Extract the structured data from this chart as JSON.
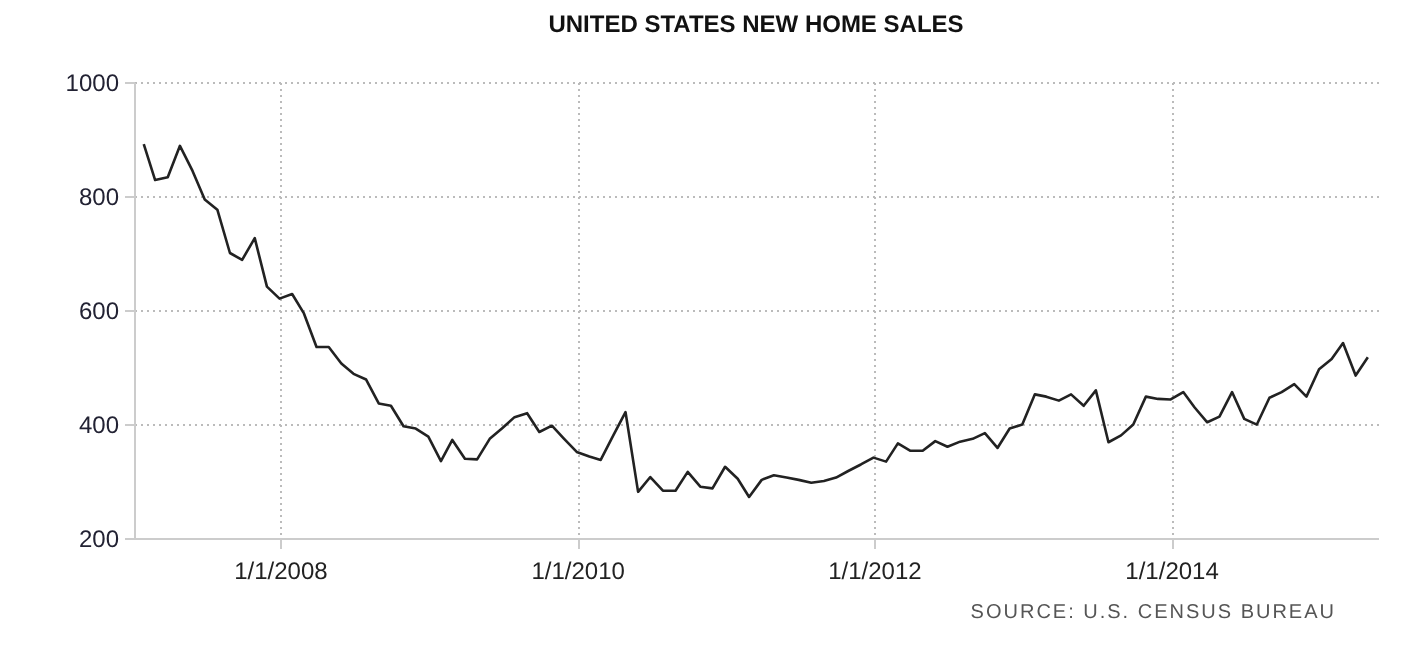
{
  "chart_data": {
    "type": "line",
    "title": "UNITED STATES NEW HOME SALES",
    "annotations": [
      "SOURCE: U.S. CENSUS BUREAU"
    ],
    "x": [
      "2007-01-31",
      "2007-02-28",
      "2007-03-31",
      "2007-04-30",
      "2007-05-31",
      "2007-06-30",
      "2007-07-31",
      "2007-08-31",
      "2007-09-30",
      "2007-10-31",
      "2007-11-30",
      "2007-12-31",
      "2008-01-31",
      "2008-02-29",
      "2008-03-31",
      "2008-04-30",
      "2008-05-31",
      "2008-06-30",
      "2008-07-31",
      "2008-08-31",
      "2008-09-30",
      "2008-10-31",
      "2008-11-30",
      "2008-12-31",
      "2009-01-31",
      "2009-02-28",
      "2009-03-31",
      "2009-04-30",
      "2009-05-31",
      "2009-06-30",
      "2009-07-31",
      "2009-08-31",
      "2009-09-30",
      "2009-10-31",
      "2009-11-30",
      "2009-12-31",
      "2010-01-31",
      "2010-02-28",
      "2010-03-31",
      "2010-04-30",
      "2010-05-31",
      "2010-06-30",
      "2010-07-31",
      "2010-08-31",
      "2010-09-30",
      "2010-10-31",
      "2010-11-30",
      "2010-12-31",
      "2011-01-31",
      "2011-02-28",
      "2011-03-31",
      "2011-04-30",
      "2011-05-31",
      "2011-06-30",
      "2011-07-31",
      "2011-08-31",
      "2011-09-30",
      "2011-10-31",
      "2011-11-30",
      "2011-12-31",
      "2012-01-31",
      "2012-02-29",
      "2012-03-31",
      "2012-04-30",
      "2012-05-31",
      "2012-06-30",
      "2012-07-31",
      "2012-08-31",
      "2012-09-30",
      "2012-10-31",
      "2012-11-30",
      "2012-12-31",
      "2013-01-31",
      "2013-02-28",
      "2013-03-31",
      "2013-04-30",
      "2013-05-31",
      "2013-06-30",
      "2013-07-31",
      "2013-08-31",
      "2013-09-30",
      "2013-10-31",
      "2013-11-30",
      "2013-12-31",
      "2014-01-31",
      "2014-02-28",
      "2014-03-31",
      "2014-04-30",
      "2014-05-31",
      "2014-06-30",
      "2014-07-31",
      "2014-08-31",
      "2014-09-30",
      "2014-10-31",
      "2014-11-30",
      "2014-12-31",
      "2015-01-31",
      "2015-02-28",
      "2015-03-31",
      "2015-04-30"
    ],
    "series": [
      {
        "color": "#222222",
        "values": [
          891,
          828,
          833,
          888,
          844,
          794,
          776,
          700,
          688,
          726,
          641,
          620,
          628,
          594,
          535,
          535,
          506,
          488,
          478,
          436,
          432,
          396,
          392,
          378,
          335,
          372,
          339,
          338,
          374,
          392,
          412,
          419,
          386,
          397,
          374,
          351,
          343,
          337,
          380,
          421,
          281,
          307,
          283,
          283,
          316,
          290,
          287,
          325,
          304,
          272,
          302,
          310,
          306,
          302,
          297,
          300,
          306,
          318,
          329,
          341,
          334,
          366,
          353,
          353,
          370,
          360,
          369,
          374,
          384,
          358,
          392,
          399,
          452,
          448,
          441,
          452,
          432,
          459,
          368,
          380,
          399,
          448,
          444,
          443,
          456,
          429,
          403,
          413,
          456,
          409,
          399,
          446,
          456,
          470,
          448,
          496,
          514,
          542,
          485,
          517
        ]
      }
    ],
    "xlim": [
      "2007-01-07",
      "2015-05-25"
    ],
    "xticks": [
      {
        "value": "2008-01-01",
        "label": "1/1/2008"
      },
      {
        "value": "2010-01-01",
        "label": "1/1/2010"
      },
      {
        "value": "2012-01-01",
        "label": "1/1/2012"
      },
      {
        "value": "2014-01-01",
        "label": "1/1/2014"
      }
    ],
    "ylim": [
      200,
      1000
    ],
    "yticks": [
      200,
      400,
      600,
      800,
      1000
    ],
    "grid": true
  }
}
